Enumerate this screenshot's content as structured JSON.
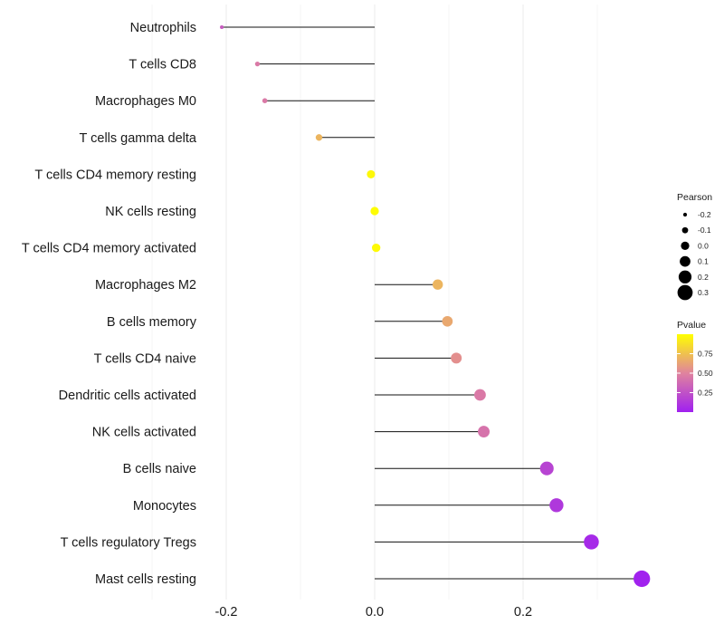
{
  "chart_data": {
    "type": "lollipop",
    "title": "",
    "xlabel": "",
    "ylabel": "",
    "xlim": [
      -0.3,
      0.37
    ],
    "x_ticks": [
      -0.2,
      0.0,
      0.2
    ],
    "x_tick_labels": [
      "-0.2",
      "0.0",
      "0.2"
    ],
    "grid": true,
    "categories": [
      "Neutrophils",
      "T cells CD8",
      "Macrophages M0",
      "T cells gamma delta",
      "T cells CD4 memory resting",
      "NK cells resting",
      "T cells CD4 memory activated",
      "Macrophages M2",
      "B cells memory",
      "T cells CD4 naive",
      "Dendritic cells activated",
      "NK cells activated",
      "B cells naive",
      "Monocytes",
      "T cells regulatory  Tregs ",
      "Mast cells resting"
    ],
    "pearson": [
      -0.206,
      -0.158,
      -0.148,
      -0.075,
      -0.005,
      0.0,
      0.002,
      0.085,
      0.098,
      0.11,
      0.142,
      0.147,
      0.232,
      0.245,
      0.292,
      0.36
    ],
    "pvalue": [
      0.3,
      0.45,
      0.45,
      0.7,
      0.97,
      0.99,
      0.98,
      0.7,
      0.65,
      0.55,
      0.45,
      0.42,
      0.18,
      0.12,
      0.05,
      0.01
    ],
    "legend_pearson": {
      "title": "Pearson",
      "values": [
        -0.2,
        -0.1,
        0.0,
        0.1,
        0.2,
        0.3
      ],
      "labels": [
        "-0.2",
        "-0.1",
        "0.0",
        "0.1",
        "0.2",
        "0.3"
      ]
    },
    "legend_pvalue": {
      "title": "Pvalue",
      "range": [
        0.0,
        1.0
      ],
      "ticks": [
        0.25,
        0.5,
        0.75
      ],
      "tick_labels": [
        "0.25",
        "0.50",
        "0.75"
      ],
      "colors": [
        "#a020f0",
        "#ffff00"
      ]
    },
    "legend_placement": "right"
  }
}
